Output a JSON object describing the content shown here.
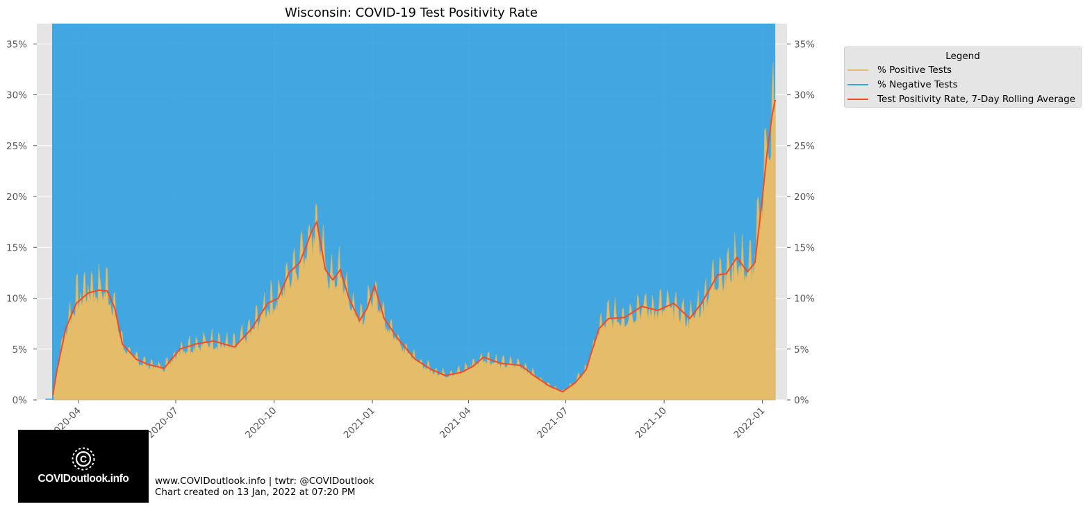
{
  "chart_data": {
    "type": "area",
    "title": "Wisconsin: COVID-19 Test Positivity Rate",
    "xlabel": "",
    "ylabel": "",
    "ylim": [
      0,
      37
    ],
    "xlim": [
      "2020-02-22",
      "2022-01-24"
    ],
    "x_ticks": [
      "2020-04-01",
      "2020-07-01",
      "2020-10-01",
      "2021-01-01",
      "2021-04-01",
      "2021-07-01",
      "2021-10-01",
      "2022-01-01"
    ],
    "x_tick_labels": [
      "2020-04",
      "2020-07",
      "2020-10",
      "2021-01",
      "2021-04",
      "2021-07",
      "2021-10",
      "2022-01"
    ],
    "y_ticks": [
      0,
      5,
      10,
      15,
      20,
      25,
      30,
      35
    ],
    "y_tick_labels": [
      "0%",
      "5%",
      "10%",
      "15%",
      "20%",
      "25%",
      "30%",
      "35%"
    ],
    "grid": true,
    "legend_position": "outside-right",
    "legend_title": "Legend",
    "data_start": "2020-03-08",
    "data_end": "2022-01-13",
    "series": [
      {
        "name": "% Positive Tests",
        "color": "#e5bc69",
        "style": "filled area with daily noise",
        "points": [
          [
            "2020-03-01",
            0
          ],
          [
            "2020-03-08",
            0
          ],
          [
            "2020-03-12",
            3
          ],
          [
            "2020-03-20",
            7
          ],
          [
            "2020-03-30",
            10
          ],
          [
            "2020-04-10",
            11
          ],
          [
            "2020-04-20",
            11
          ],
          [
            "2020-04-28",
            11
          ],
          [
            "2020-05-05",
            9
          ],
          [
            "2020-05-12",
            5.5
          ],
          [
            "2020-05-25",
            4
          ],
          [
            "2020-06-05",
            3.5
          ],
          [
            "2020-06-20",
            3.2
          ],
          [
            "2020-07-05",
            5
          ],
          [
            "2020-07-20",
            5.5
          ],
          [
            "2020-08-05",
            5.8
          ],
          [
            "2020-08-25",
            5.3
          ],
          [
            "2020-09-10",
            7
          ],
          [
            "2020-09-25",
            9.5
          ],
          [
            "2020-10-05",
            10
          ],
          [
            "2020-10-15",
            12.5
          ],
          [
            "2020-10-25",
            14
          ],
          [
            "2020-11-05",
            16.5
          ],
          [
            "2020-11-10",
            17.5
          ],
          [
            "2020-11-18",
            13
          ],
          [
            "2020-11-25",
            12
          ],
          [
            "2020-12-02",
            12.5
          ],
          [
            "2020-12-10",
            10
          ],
          [
            "2020-12-20",
            8
          ],
          [
            "2020-12-27",
            9
          ],
          [
            "2021-01-03",
            11
          ],
          [
            "2021-01-12",
            8
          ],
          [
            "2021-01-25",
            6
          ],
          [
            "2021-02-10",
            4
          ],
          [
            "2021-02-25",
            3
          ],
          [
            "2021-03-10",
            2.5
          ],
          [
            "2021-03-25",
            2.8
          ],
          [
            "2021-04-05",
            3.5
          ],
          [
            "2021-04-15",
            4.2
          ],
          [
            "2021-05-01",
            3.6
          ],
          [
            "2021-05-20",
            3.5
          ],
          [
            "2021-06-01",
            2.5
          ],
          [
            "2021-06-15",
            1.5
          ],
          [
            "2021-06-28",
            0.8
          ],
          [
            "2021-07-10",
            1.8
          ],
          [
            "2021-07-20",
            3
          ],
          [
            "2021-08-01",
            7
          ],
          [
            "2021-08-10",
            8.2
          ],
          [
            "2021-08-25",
            8.2
          ],
          [
            "2021-09-10",
            9.2
          ],
          [
            "2021-09-25",
            9
          ],
          [
            "2021-10-10",
            9.3
          ],
          [
            "2021-10-25",
            8
          ],
          [
            "2021-11-05",
            9.5
          ],
          [
            "2021-11-20",
            12.5
          ],
          [
            "2021-11-28",
            12.5
          ],
          [
            "2021-12-08",
            14
          ],
          [
            "2021-12-18",
            12.8
          ],
          [
            "2021-12-25",
            14
          ],
          [
            "2022-01-01",
            21
          ],
          [
            "2022-01-05",
            25
          ],
          [
            "2022-01-10",
            28
          ],
          [
            "2022-01-13",
            29.5
          ]
        ]
      },
      {
        "name": "% Negative Tests",
        "color": "#36a2e0",
        "style": "filled from % Positive Tests up to 100%"
      },
      {
        "name": "Test Positivity Rate, 7-Day Rolling Average",
        "color": "#f24a22",
        "style": "line",
        "points": [
          [
            "2020-03-08",
            0.5
          ],
          [
            "2020-03-12",
            3
          ],
          [
            "2020-03-20",
            7
          ],
          [
            "2020-03-30",
            9.5
          ],
          [
            "2020-04-10",
            10.5
          ],
          [
            "2020-04-20",
            10.8
          ],
          [
            "2020-04-28",
            10.7
          ],
          [
            "2020-05-05",
            9
          ],
          [
            "2020-05-12",
            5.5
          ],
          [
            "2020-05-25",
            4
          ],
          [
            "2020-06-05",
            3.5
          ],
          [
            "2020-06-20",
            3.1
          ],
          [
            "2020-07-05",
            5
          ],
          [
            "2020-07-20",
            5.5
          ],
          [
            "2020-08-05",
            5.8
          ],
          [
            "2020-08-25",
            5.2
          ],
          [
            "2020-09-10",
            7
          ],
          [
            "2020-09-25",
            9.5
          ],
          [
            "2020-10-05",
            10
          ],
          [
            "2020-10-15",
            12.5
          ],
          [
            "2020-10-25",
            13.5
          ],
          [
            "2020-11-05",
            16.5
          ],
          [
            "2020-11-10",
            17.5
          ],
          [
            "2020-11-18",
            12.8
          ],
          [
            "2020-11-25",
            11.8
          ],
          [
            "2020-12-02",
            12.8
          ],
          [
            "2020-12-10",
            10
          ],
          [
            "2020-12-20",
            7.8
          ],
          [
            "2020-12-27",
            9
          ],
          [
            "2021-01-03",
            11.2
          ],
          [
            "2021-01-12",
            8
          ],
          [
            "2021-01-25",
            6
          ],
          [
            "2021-02-10",
            4
          ],
          [
            "2021-02-25",
            3
          ],
          [
            "2021-03-10",
            2.4
          ],
          [
            "2021-03-25",
            2.7
          ],
          [
            "2021-04-05",
            3.3
          ],
          [
            "2021-04-15",
            4.2
          ],
          [
            "2021-05-01",
            3.6
          ],
          [
            "2021-05-20",
            3.4
          ],
          [
            "2021-06-01",
            2.4
          ],
          [
            "2021-06-15",
            1.4
          ],
          [
            "2021-06-28",
            0.8
          ],
          [
            "2021-07-10",
            1.7
          ],
          [
            "2021-07-20",
            3
          ],
          [
            "2021-08-01",
            7
          ],
          [
            "2021-08-10",
            8
          ],
          [
            "2021-08-25",
            8.1
          ],
          [
            "2021-09-10",
            9.2
          ],
          [
            "2021-09-25",
            8.8
          ],
          [
            "2021-10-10",
            9.5
          ],
          [
            "2021-10-25",
            8
          ],
          [
            "2021-11-05",
            9.5
          ],
          [
            "2021-11-20",
            12.3
          ],
          [
            "2021-11-28",
            12.4
          ],
          [
            "2021-12-08",
            14
          ],
          [
            "2021-12-18",
            12.6
          ],
          [
            "2021-12-25",
            13.5
          ],
          [
            "2022-01-01",
            20
          ],
          [
            "2022-01-05",
            24
          ],
          [
            "2022-01-10",
            28
          ],
          [
            "2022-01-13",
            29.5
          ]
        ]
      }
    ]
  },
  "colors": {
    "plot_background": "#e5e5e5",
    "positive": "#e5bc69",
    "negative": "#36a2e0",
    "rolling": "#f24a22",
    "axis_text": "#555555"
  },
  "logo": {
    "text": "COVIDoutlook.info",
    "icon": "virus-c-logo-icon"
  },
  "footer": {
    "line1": "www.COVIDoutlook.info | twtr: @COVIDoutlook",
    "line2": "Chart created on 13 Jan, 2022 at 07:20 PM"
  }
}
